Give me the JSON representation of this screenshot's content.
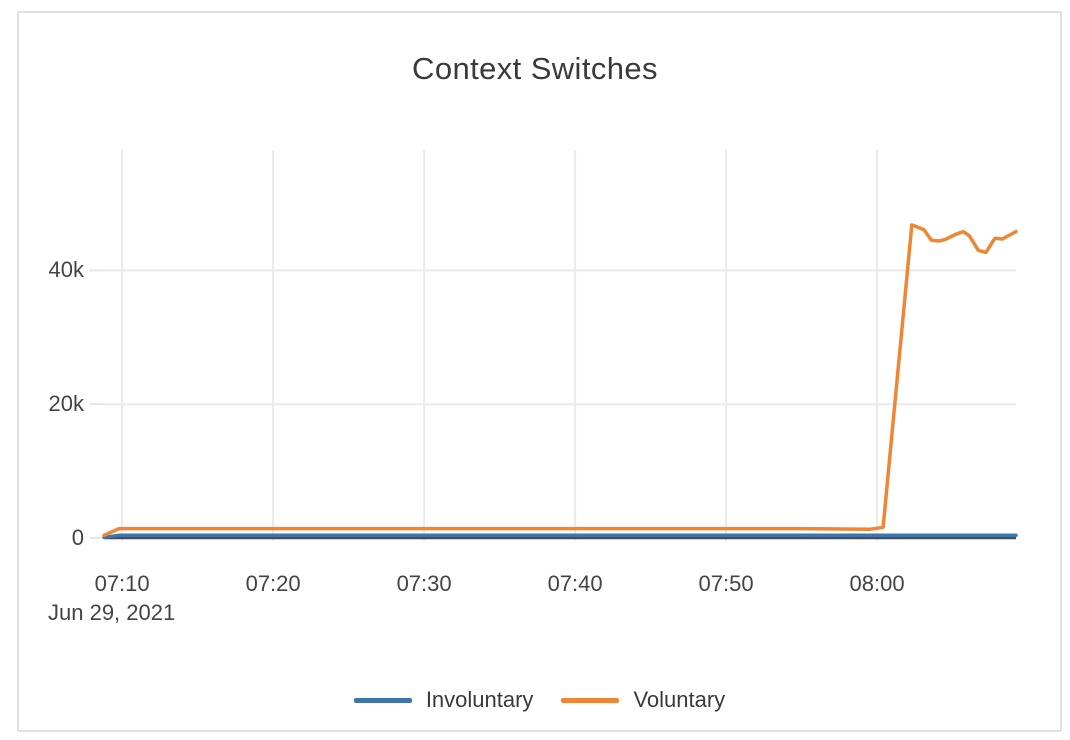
{
  "chart_data": {
    "type": "line",
    "title": "Context Switches",
    "x_date_label": "Jun 29, 2021",
    "x_ticks": [
      {
        "t": 10,
        "label": "07:10"
      },
      {
        "t": 20,
        "label": "07:20"
      },
      {
        "t": 30,
        "label": "07:30"
      },
      {
        "t": 40,
        "label": "07:40"
      },
      {
        "t": 50,
        "label": "07:50"
      },
      {
        "t": 60,
        "label": "08:00"
      }
    ],
    "y_ticks": [
      {
        "v": 0,
        "label": "0"
      },
      {
        "v": 20000,
        "label": "20k"
      },
      {
        "v": 40000,
        "label": "40k"
      }
    ],
    "x_range_minutes_after_0700": [
      8.8,
      69.2
    ],
    "ylim": [
      0,
      58000
    ],
    "grid": true,
    "legend_position": "bottom-center",
    "series": [
      {
        "name": "Involuntary",
        "color": "#3e76ab",
        "points": [
          [
            8.8,
            100
          ],
          [
            9.8,
            400
          ],
          [
            15,
            400
          ],
          [
            20,
            400
          ],
          [
            25,
            400
          ],
          [
            30,
            400
          ],
          [
            35,
            400
          ],
          [
            40,
            400
          ],
          [
            45,
            400
          ],
          [
            50,
            400
          ],
          [
            55,
            400
          ],
          [
            60,
            400
          ],
          [
            65,
            400
          ],
          [
            69.2,
            400
          ]
        ]
      },
      {
        "name": "Voluntary",
        "color": "#ef8636",
        "points": [
          [
            8.8,
            400
          ],
          [
            9.8,
            1400
          ],
          [
            15,
            1400
          ],
          [
            20,
            1400
          ],
          [
            25,
            1400
          ],
          [
            30,
            1400
          ],
          [
            35,
            1400
          ],
          [
            40,
            1400
          ],
          [
            45,
            1400
          ],
          [
            50,
            1400
          ],
          [
            55,
            1400
          ],
          [
            59.5,
            1300
          ],
          [
            60.4,
            1600
          ],
          [
            62.3,
            46800
          ],
          [
            63.1,
            46100
          ],
          [
            63.6,
            44500
          ],
          [
            64.1,
            44400
          ],
          [
            64.5,
            44600
          ],
          [
            65.2,
            45400
          ],
          [
            65.7,
            45800
          ],
          [
            66.1,
            45200
          ],
          [
            66.7,
            43000
          ],
          [
            67.2,
            42700
          ],
          [
            67.8,
            44800
          ],
          [
            68.3,
            44700
          ],
          [
            68.7,
            45200
          ],
          [
            69.2,
            45800
          ]
        ]
      }
    ]
  }
}
